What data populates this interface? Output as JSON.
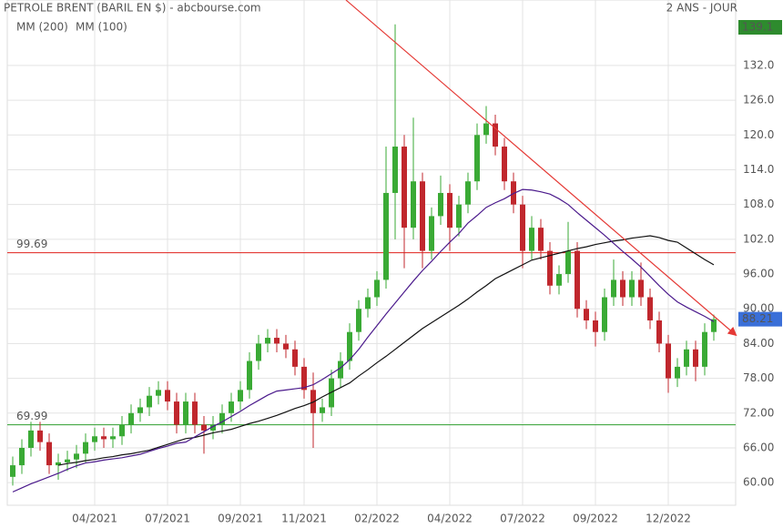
{
  "chart_data": {
    "type": "candlestick",
    "title": "PETROLE BRENT (BARIL EN $) - abcbourse.com",
    "period": "2 ANS - JOUR",
    "categories": [
      null,
      null,
      null,
      null,
      null,
      null,
      null,
      null,
      null,
      "04/2021",
      null,
      null,
      null,
      null,
      null,
      null,
      null,
      "07/2021",
      null,
      null,
      null,
      null,
      null,
      null,
      null,
      "09/2021",
      null,
      null,
      null,
      null,
      null,
      null,
      "11/2021",
      null,
      null,
      null,
      null,
      null,
      null,
      null,
      "02/2022",
      null,
      null,
      null,
      null,
      null,
      null,
      null,
      "04/2022",
      null,
      null,
      null,
      null,
      null,
      null,
      null,
      "07/2022",
      null,
      null,
      null,
      null,
      null,
      null,
      null,
      "09/2022",
      null,
      null,
      null,
      null,
      null,
      null,
      null,
      "12/2022",
      null,
      null,
      null,
      null,
      null
    ],
    "open": [
      61,
      63,
      66,
      69,
      67,
      63,
      63.5,
      64,
      65,
      67,
      68,
      67.5,
      68,
      70,
      72,
      73,
      75,
      76,
      74,
      70,
      74,
      70,
      69,
      70,
      72,
      74,
      76,
      81,
      84,
      85,
      84,
      83,
      80,
      76,
      72,
      73,
      78,
      81,
      86,
      90,
      92,
      95,
      110,
      118,
      104,
      112,
      100,
      106,
      110,
      104,
      108,
      112,
      120,
      122,
      118,
      112,
      108,
      100,
      104,
      100,
      94,
      96,
      100,
      90,
      88,
      86,
      92,
      95,
      92,
      95,
      92,
      88,
      84,
      78,
      80,
      83,
      80,
      86
    ],
    "high": [
      64.5,
      67.5,
      70.5,
      70.5,
      68.5,
      65,
      65.5,
      66.5,
      68.5,
      69.5,
      69.5,
      69.5,
      71.5,
      73.5,
      74.5,
      76.5,
      77.5,
      77.5,
      75.5,
      75.5,
      75.5,
      71.5,
      71.5,
      73.5,
      75.5,
      77.5,
      82.5,
      85.5,
      86.5,
      86.5,
      85.5,
      84.5,
      81.5,
      79,
      74.5,
      79.5,
      82.5,
      87.5,
      91.5,
      93.5,
      96.5,
      118,
      139.1,
      120,
      123,
      113.5,
      107.5,
      113,
      111.5,
      109.5,
      113.5,
      122,
      125,
      123.5,
      119.5,
      113.5,
      109.5,
      106,
      105.5,
      101.5,
      97.5,
      105,
      101.5,
      91.5,
      89.5,
      93.5,
      98.5,
      96.5,
      96.5,
      98,
      93.5,
      89.5,
      85.5,
      81.5,
      84.5,
      84.5,
      87.5,
      89
    ],
    "low": [
      59.5,
      61.5,
      64.5,
      65.5,
      61.5,
      60.5,
      62,
      62.5,
      63.5,
      65.5,
      66,
      66,
      66.5,
      68.5,
      70.5,
      71.5,
      73.5,
      72.5,
      68.5,
      68.5,
      68.5,
      65,
      67.5,
      68.5,
      70.5,
      72.5,
      74.5,
      79.5,
      82.5,
      82.5,
      81.5,
      78.5,
      74.5,
      66,
      70.5,
      71.5,
      76.5,
      79.5,
      84.5,
      88.5,
      90.5,
      93.5,
      102,
      97,
      102,
      97,
      98.5,
      104.5,
      100,
      102.5,
      106.5,
      110.5,
      118.5,
      116.5,
      110.5,
      106.5,
      97,
      98.5,
      98.5,
      92.5,
      92.5,
      94.5,
      88.5,
      86.5,
      83.5,
      84.5,
      90.5,
      90.5,
      90.5,
      90.5,
      86.5,
      82.5,
      75.5,
      76.5,
      78.5,
      77.5,
      78.5,
      84.5
    ],
    "close": [
      63,
      66,
      69,
      67,
      63,
      63.5,
      64,
      65,
      67,
      68,
      67.5,
      68,
      70,
      72,
      73,
      75,
      76,
      74,
      70,
      74,
      70,
      69,
      70,
      72,
      74,
      76,
      81,
      84,
      85,
      84,
      83,
      80,
      76,
      72,
      73,
      78,
      81,
      86,
      90,
      92,
      95,
      110,
      118,
      104,
      112,
      100,
      106,
      110,
      104,
      108,
      112,
      120,
      122,
      118,
      112,
      108,
      100,
      104,
      100,
      94,
      96,
      100,
      90,
      88,
      86,
      92,
      95,
      92,
      95,
      92,
      88,
      84,
      78,
      80,
      83,
      80,
      86,
      88.21
    ],
    "up_color": "#3aaa35",
    "down_color": "#c0272d",
    "series": [
      {
        "name": "MM (200)",
        "color": "#111111",
        "values": [
          null,
          null,
          null,
          null,
          null,
          63,
          63.3,
          63.5,
          63.8,
          64,
          64.3,
          64.5,
          64.8,
          65,
          65.3,
          65.6,
          66.1,
          66.6,
          67.1,
          67.6,
          67.8,
          68.2,
          68.6,
          68.9,
          69.2,
          69.7,
          70.2,
          70.6,
          71.1,
          71.6,
          72.2,
          72.8,
          73.3,
          73.9,
          74.8,
          75.6,
          76.4,
          77.2,
          78.4,
          79.5,
          80.7,
          81.8,
          83,
          84.2,
          85.4,
          86.6,
          87.6,
          88.6,
          89.6,
          90.6,
          91.7,
          92.9,
          94,
          95.2,
          96,
          96.8,
          97.6,
          98.4,
          98.8,
          99.2,
          99.6,
          100,
          100.4,
          100.7,
          101.1,
          101.4,
          101.7,
          101.9,
          102.2,
          102.4,
          102.6,
          102.3,
          101.8,
          101.5,
          100.5,
          99.5,
          98.5,
          97.6
        ]
      },
      {
        "name": "MM (100)",
        "color": "#4b1a8c",
        "values": [
          58.4,
          59.1,
          59.8,
          60.4,
          61,
          61.6,
          62.3,
          62.9,
          63.4,
          63.6,
          63.9,
          64.1,
          64.3,
          64.6,
          64.9,
          65.4,
          65.9,
          66.3,
          66.8,
          67,
          67.9,
          68.8,
          69.7,
          70.5,
          71.4,
          72.3,
          73.3,
          74.2,
          75.1,
          75.8,
          76,
          76.2,
          76.4,
          76.9,
          77.8,
          78.8,
          79.8,
          81.2,
          83,
          85.1,
          87.1,
          89.1,
          91,
          92.9,
          94.8,
          96.6,
          98.2,
          99.9,
          101.5,
          103,
          104.8,
          106.1,
          107.5,
          108.3,
          109,
          109.9,
          110.6,
          110.5,
          110.2,
          109.8,
          109,
          108,
          106.6,
          105.3,
          104,
          102.7,
          101.3,
          99.9,
          98.6,
          97.2,
          95.6,
          94,
          92.5,
          91.2,
          90.3,
          89.5,
          88.7,
          87.8
        ]
      }
    ],
    "ylim": [
      56.1,
      143.3
    ],
    "yticks": [
      {
        "value": 60,
        "label": "60.00"
      },
      {
        "value": 66,
        "label": "66.00"
      },
      {
        "value": 72,
        "label": "72.00"
      },
      {
        "value": 78,
        "label": "78.00"
      },
      {
        "value": 84,
        "label": "84.00"
      },
      {
        "value": 90,
        "label": "90.00"
      },
      {
        "value": 96,
        "label": "96.00"
      },
      {
        "value": 102,
        "label": "102.0"
      },
      {
        "value": 108,
        "label": "108.0"
      },
      {
        "value": 114,
        "label": "114.0"
      },
      {
        "value": 120,
        "label": "120.0"
      },
      {
        "value": 126,
        "label": "126.0"
      },
      {
        "value": 132,
        "label": "132.0"
      }
    ],
    "grid": true,
    "hlines": [
      {
        "value": 99.69,
        "color": "#e0201b"
      },
      {
        "value": 69.99,
        "color": "#2e9e2e"
      }
    ],
    "trendline": {
      "color": "#e53935",
      "x": [
        36.6,
        79.4
      ],
      "y": [
        143.3,
        85.5
      ]
    },
    "last_price": {
      "value": 88.21,
      "color": "#3a6fd8"
    },
    "max_price": {
      "value": 139.1,
      "color": "#2e8b2e"
    }
  }
}
